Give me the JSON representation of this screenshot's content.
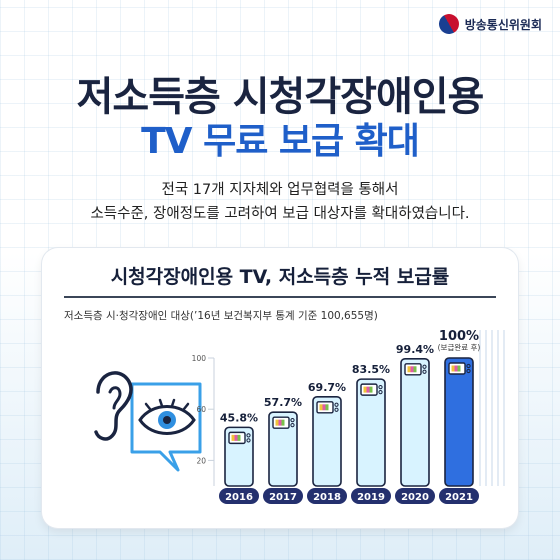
{
  "header": {
    "logo_text": "방송통신위원회"
  },
  "headline": {
    "line1": "저소득층 시청각장애인용",
    "line2": "TV 무료 보급 확대"
  },
  "description": {
    "line1": "전국 17개 지자체와 업무협력을 통해서",
    "line2": "소득수준, 장애정도를 고려하여 보급 대상자를 확대하였습니다."
  },
  "chart_data": {
    "type": "bar",
    "title": "시청각장애인용 TV, 저소득층 누적 보급률",
    "subtitle": "저소득층 시·청각장애인 대상(’16년 보건복지부 통계 기준 100,655명)",
    "categories": [
      "2016",
      "2017",
      "2018",
      "2019",
      "2020",
      "2021"
    ],
    "values": [
      45.8,
      57.7,
      69.7,
      83.5,
      99.4,
      100
    ],
    "value_labels": [
      "45.8%",
      "57.7%",
      "69.7%",
      "83.5%",
      "99.4%",
      "100%"
    ],
    "annotation": "(보급완료 후)",
    "y_ticks": [
      20,
      60,
      100
    ],
    "ylim": [
      0,
      100
    ],
    "colors": {
      "bar": "#d8f3ff",
      "bar_highlight": "#2f6fe0",
      "year_pill": "#24306e"
    }
  },
  "icons": [
    "ear-icon",
    "eye-icon",
    "tv-icon"
  ]
}
